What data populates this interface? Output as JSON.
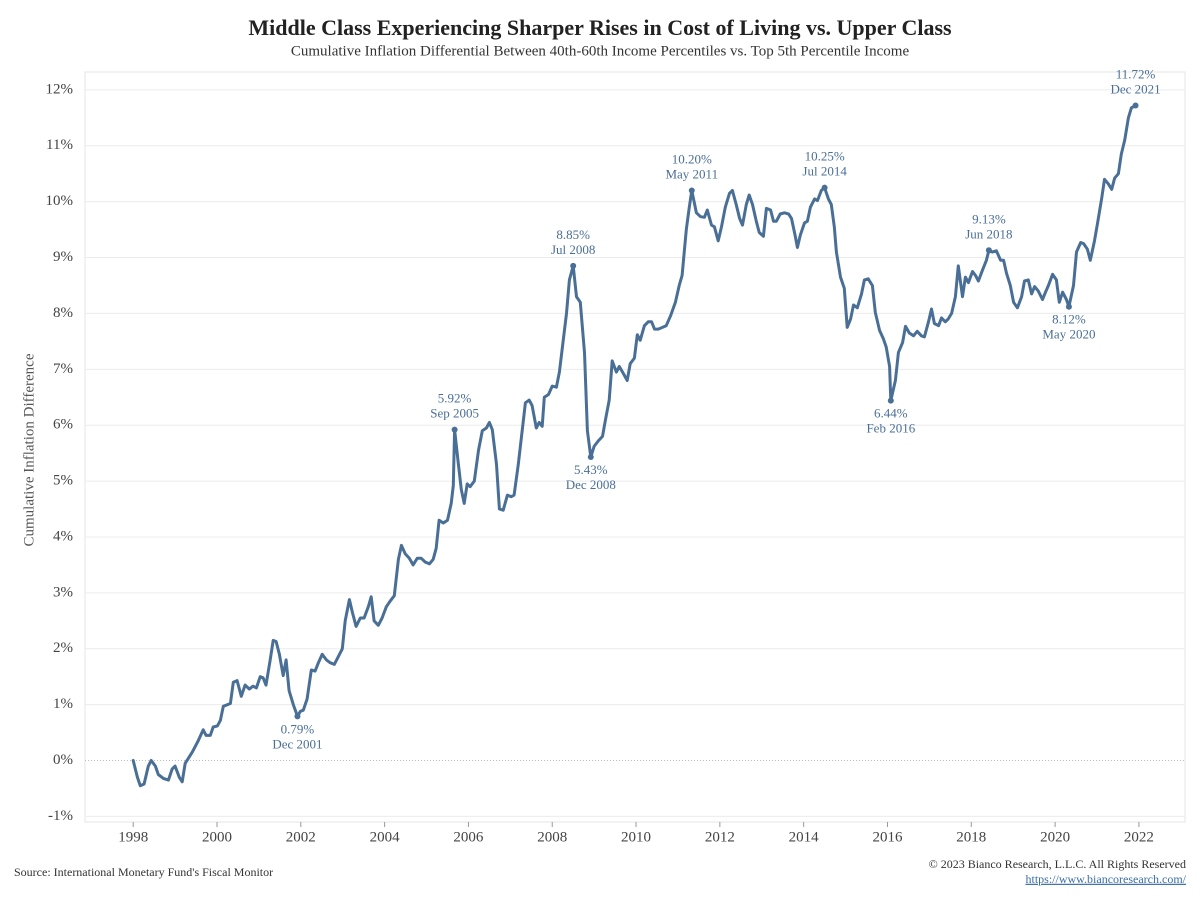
{
  "chart_data": {
    "type": "line",
    "title": "Middle Class Experiencing Sharper Rises in Cost of Living vs. Upper Class",
    "subtitle": "Cumulative Inflation Differential Between 40th-60th Income Percentiles vs. Top 5th Percentile Income",
    "y_label": "Cumulative Inflation Difference",
    "source": "Source: International Monetary Fund's Fiscal Monitor",
    "copyright": "© 2023 Bianco Research, L.L.C. All Rights Reserved",
    "url": "https://www.biancoresearch.com/",
    "color": "#4a6f96",
    "grid": true,
    "xlim": [
      1996.85,
      2023.1
    ],
    "ylim": [
      -1.1,
      12.32
    ],
    "xticks": [
      1998,
      2000,
      2002,
      2004,
      2006,
      2008,
      2010,
      2012,
      2014,
      2016,
      2018,
      2020,
      2022
    ],
    "yticks": [
      {
        "value": -1,
        "label": "-1%"
      },
      {
        "value": 0,
        "label": "0%"
      },
      {
        "value": 1,
        "label": "1%"
      },
      {
        "value": 2,
        "label": "2%"
      },
      {
        "value": 3,
        "label": "3%"
      },
      {
        "value": 4,
        "label": "4%"
      },
      {
        "value": 5,
        "label": "5%"
      },
      {
        "value": 6,
        "label": "6%"
      },
      {
        "value": 7,
        "label": "7%"
      },
      {
        "value": 8,
        "label": "8%"
      },
      {
        "value": 9,
        "label": "9%"
      },
      {
        "value": 10,
        "label": "10%"
      },
      {
        "value": 11,
        "label": "11%"
      },
      {
        "value": 12,
        "label": "12%"
      }
    ],
    "x": [
      1998.0,
      1998.1,
      1998.17,
      1998.26,
      1998.36,
      1998.43,
      1998.53,
      1998.6,
      1998.72,
      1998.84,
      1998.93,
      1999.0,
      1999.1,
      1999.17,
      1999.24,
      1999.41,
      1999.55,
      1999.67,
      1999.74,
      1999.84,
      1999.91,
      2000.01,
      2000.08,
      2000.15,
      2000.32,
      2000.39,
      2000.48,
      2000.58,
      2000.67,
      2000.77,
      2000.86,
      2000.94,
      2001.03,
      2001.1,
      2001.17,
      2001.27,
      2001.34,
      2001.41,
      2001.49,
      2001.58,
      2001.65,
      2001.72,
      2001.82,
      2001.92,
      2001.99,
      2002.06,
      2002.15,
      2002.25,
      2002.34,
      2002.42,
      2002.51,
      2002.61,
      2002.7,
      2002.8,
      2002.89,
      2002.99,
      2003.06,
      2003.16,
      2003.23,
      2003.32,
      2003.42,
      2003.51,
      2003.61,
      2003.68,
      2003.75,
      2003.85,
      2003.94,
      2004.04,
      2004.13,
      2004.23,
      2004.33,
      2004.4,
      2004.49,
      2004.59,
      2004.68,
      2004.78,
      2004.87,
      2004.97,
      2005.07,
      2005.16,
      2005.23,
      2005.3,
      2005.4,
      2005.5,
      2005.59,
      2005.64,
      2005.67,
      2005.76,
      2005.83,
      2005.9,
      2005.97,
      2006.04,
      2006.14,
      2006.24,
      2006.33,
      2006.43,
      2006.5,
      2006.57,
      2006.67,
      2006.74,
      2006.83,
      2006.93,
      2007.02,
      2007.09,
      2007.19,
      2007.26,
      2007.36,
      2007.45,
      2007.52,
      2007.62,
      2007.69,
      2007.76,
      2007.81,
      2007.91,
      2008.0,
      2008.1,
      2008.17,
      2008.26,
      2008.34,
      2008.41,
      2008.5,
      2008.58,
      2008.67,
      2008.77,
      2008.84,
      2008.92,
      2009.0,
      2009.1,
      2009.2,
      2009.27,
      2009.36,
      2009.43,
      2009.53,
      2009.6,
      2009.7,
      2009.79,
      2009.86,
      2009.96,
      2010.03,
      2010.1,
      2010.2,
      2010.29,
      2010.37,
      2010.44,
      2010.53,
      2010.63,
      2010.72,
      2010.82,
      2010.94,
      2011.03,
      2011.1,
      2011.2,
      2011.27,
      2011.33,
      2011.44,
      2011.54,
      2011.63,
      2011.7,
      2011.8,
      2011.87,
      2011.96,
      2012.04,
      2012.13,
      2012.23,
      2012.3,
      2012.39,
      2012.47,
      2012.54,
      2012.63,
      2012.7,
      2012.78,
      2012.87,
      2012.94,
      2013.04,
      2013.11,
      2013.21,
      2013.28,
      2013.35,
      2013.44,
      2013.54,
      2013.64,
      2013.71,
      2013.8,
      2013.85,
      2013.92,
      2014.02,
      2014.09,
      2014.16,
      2014.26,
      2014.33,
      2014.42,
      2014.5,
      2014.59,
      2014.66,
      2014.73,
      2014.78,
      2014.88,
      2014.97,
      2015.04,
      2015.12,
      2015.19,
      2015.28,
      2015.38,
      2015.45,
      2015.54,
      2015.64,
      2015.71,
      2015.81,
      2015.9,
      2015.97,
      2016.05,
      2016.08,
      2016.19,
      2016.26,
      2016.36,
      2016.43,
      2016.52,
      2016.62,
      2016.71,
      2016.81,
      2016.88,
      2016.98,
      2017.05,
      2017.12,
      2017.22,
      2017.29,
      2017.38,
      2017.45,
      2017.53,
      2017.62,
      2017.69,
      2017.79,
      2017.86,
      2017.93,
      2018.03,
      2018.1,
      2018.17,
      2018.27,
      2018.36,
      2018.42,
      2018.5,
      2018.6,
      2018.7,
      2018.77,
      2018.84,
      2018.93,
      2019.01,
      2019.1,
      2019.2,
      2019.27,
      2019.36,
      2019.44,
      2019.51,
      2019.6,
      2019.7,
      2019.77,
      2019.84,
      2019.94,
      2020.03,
      2020.1,
      2020.18,
      2020.27,
      2020.33,
      2020.44,
      2020.51,
      2020.61,
      2020.68,
      2020.77,
      2020.84,
      2020.94,
      2021.01,
      2021.11,
      2021.18,
      2021.27,
      2021.35,
      2021.42,
      2021.51,
      2021.58,
      2021.66,
      2021.75,
      2021.82,
      2021.92
    ],
    "values": [
      0.0,
      -0.3,
      -0.45,
      -0.42,
      -0.1,
      0.0,
      -0.1,
      -0.25,
      -0.32,
      -0.35,
      -0.15,
      -0.1,
      -0.3,
      -0.38,
      -0.05,
      0.15,
      0.35,
      0.55,
      0.45,
      0.45,
      0.6,
      0.62,
      0.72,
      0.97,
      1.02,
      1.4,
      1.43,
      1.15,
      1.35,
      1.28,
      1.33,
      1.3,
      1.5,
      1.48,
      1.35,
      1.8,
      2.15,
      2.13,
      1.9,
      1.52,
      1.8,
      1.25,
      1.0,
      0.79,
      0.88,
      0.9,
      1.1,
      1.62,
      1.6,
      1.75,
      1.9,
      1.8,
      1.75,
      1.72,
      1.85,
      2.0,
      2.5,
      2.88,
      2.65,
      2.4,
      2.55,
      2.55,
      2.75,
      2.93,
      2.5,
      2.42,
      2.55,
      2.75,
      2.85,
      2.95,
      3.6,
      3.85,
      3.7,
      3.62,
      3.5,
      3.62,
      3.62,
      3.55,
      3.52,
      3.6,
      3.8,
      4.3,
      4.25,
      4.3,
      4.6,
      4.92,
      5.92,
      5.3,
      4.85,
      4.6,
      4.95,
      4.9,
      5.0,
      5.55,
      5.9,
      5.95,
      6.05,
      5.92,
      5.3,
      4.5,
      4.48,
      4.75,
      4.72,
      4.75,
      5.3,
      5.75,
      6.4,
      6.45,
      6.35,
      5.95,
      6.05,
      5.98,
      6.5,
      6.55,
      6.7,
      6.68,
      6.95,
      7.5,
      8.0,
      8.6,
      8.85,
      8.3,
      8.2,
      7.3,
      5.9,
      5.43,
      5.62,
      5.72,
      5.8,
      6.1,
      6.45,
      7.15,
      6.95,
      7.05,
      6.92,
      6.8,
      7.1,
      7.2,
      7.62,
      7.52,
      7.78,
      7.85,
      7.85,
      7.72,
      7.72,
      7.75,
      7.78,
      7.95,
      8.2,
      8.5,
      8.68,
      9.5,
      9.9,
      10.2,
      9.8,
      9.73,
      9.72,
      9.85,
      9.58,
      9.55,
      9.3,
      9.55,
      9.9,
      10.15,
      10.2,
      9.95,
      9.7,
      9.58,
      9.95,
      10.12,
      9.95,
      9.65,
      9.45,
      9.38,
      9.88,
      9.85,
      9.65,
      9.65,
      9.78,
      9.8,
      9.78,
      9.7,
      9.38,
      9.18,
      9.4,
      9.62,
      9.65,
      9.9,
      10.05,
      10.02,
      10.2,
      10.25,
      10.05,
      9.95,
      9.55,
      9.1,
      8.65,
      8.45,
      7.75,
      7.9,
      8.15,
      8.1,
      8.35,
      8.6,
      8.62,
      8.5,
      8.02,
      7.7,
      7.55,
      7.4,
      7.05,
      6.44,
      6.8,
      7.3,
      7.48,
      7.77,
      7.65,
      7.6,
      7.68,
      7.6,
      7.58,
      7.85,
      8.08,
      7.82,
      7.78,
      7.92,
      7.85,
      7.9,
      8.0,
      8.3,
      8.85,
      8.3,
      8.65,
      8.55,
      8.75,
      8.68,
      8.58,
      8.78,
      8.95,
      9.13,
      9.1,
      9.12,
      8.95,
      8.95,
      8.72,
      8.5,
      8.2,
      8.1,
      8.3,
      8.58,
      8.6,
      8.35,
      8.48,
      8.4,
      8.25,
      8.38,
      8.5,
      8.7,
      8.6,
      8.2,
      8.38,
      8.25,
      8.12,
      8.5,
      9.1,
      9.27,
      9.25,
      9.15,
      8.95,
      9.3,
      9.6,
      10.05,
      10.4,
      10.32,
      10.22,
      10.42,
      10.5,
      10.85,
      11.1,
      11.5,
      11.68,
      11.72
    ],
    "annotations": [
      {
        "x": 2001.92,
        "y": 0.79,
        "value_label": "0.79%",
        "date": "Dec 2001",
        "placement": "below"
      },
      {
        "x": 2005.67,
        "y": 5.92,
        "value_label": "5.92%",
        "date": "Sep 2005",
        "placement": "above"
      },
      {
        "x": 2008.5,
        "y": 8.85,
        "value_label": "8.85%",
        "date": "Jul 2008",
        "placement": "above"
      },
      {
        "x": 2008.92,
        "y": 5.43,
        "value_label": "5.43%",
        "date": "Dec 2008",
        "placement": "below"
      },
      {
        "x": 2011.33,
        "y": 10.2,
        "value_label": "10.20%",
        "date": "May 2011",
        "placement": "above"
      },
      {
        "x": 2014.5,
        "y": 10.25,
        "value_label": "10.25%",
        "date": "Jul 2014",
        "placement": "above"
      },
      {
        "x": 2016.08,
        "y": 6.44,
        "value_label": "6.44%",
        "date": "Feb 2016",
        "placement": "below"
      },
      {
        "x": 2018.42,
        "y": 9.13,
        "value_label": "9.13%",
        "date": "Jun 2018",
        "placement": "above"
      },
      {
        "x": 2020.33,
        "y": 8.12,
        "value_label": "8.12%",
        "date": "May 2020",
        "placement": "below"
      },
      {
        "x": 2021.92,
        "y": 11.72,
        "value_label": "11.72%",
        "date": "Dec 2021",
        "placement": "above"
      }
    ]
  }
}
